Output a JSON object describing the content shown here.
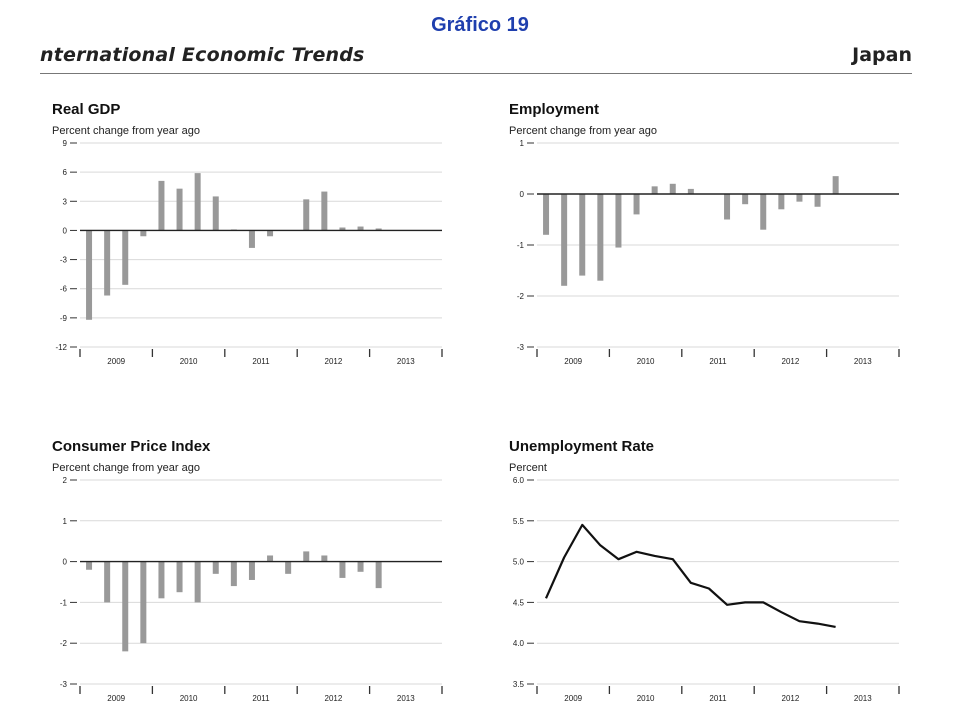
{
  "page": {
    "title": "Gráfico 19",
    "banner_left": "nternational Economic Trends",
    "banner_right": "Japan",
    "colors": {
      "title": "#1f3fae",
      "bar": "#999999",
      "line": "#111111",
      "grid": "#d9d9d9"
    }
  },
  "chart_data": [
    {
      "type": "bar",
      "title": "Real GDP",
      "subtitle": "Percent change from year ago",
      "ylim": [
        -12,
        9
      ],
      "yticks": [
        9,
        6,
        3,
        0,
        -3,
        -6,
        -9,
        -12
      ],
      "grid": true,
      "xlim": [
        2009.0,
        2014.0
      ],
      "year_labels": [
        "2009",
        "2010",
        "2011",
        "2012",
        "2013"
      ],
      "x": [
        "2009Q1",
        "2009Q2",
        "2009Q3",
        "2009Q4",
        "2010Q1",
        "2010Q2",
        "2010Q3",
        "2010Q4",
        "2011Q1",
        "2011Q2",
        "2011Q3",
        "2011Q4",
        "2012Q1",
        "2012Q2",
        "2012Q3",
        "2012Q4",
        "2013Q1",
        "2013Q2",
        "2013Q3",
        "2013Q4"
      ],
      "values": [
        -9.2,
        -6.7,
        -5.6,
        -0.6,
        5.1,
        4.3,
        5.9,
        3.5,
        0.1,
        -1.8,
        -0.6,
        null,
        3.2,
        4.0,
        0.3,
        0.4,
        0.2,
        null,
        null,
        null
      ]
    },
    {
      "type": "bar",
      "title": "Employment",
      "subtitle": "Percent change from year ago",
      "ylim": [
        -3,
        1
      ],
      "yticks": [
        1,
        0,
        -1,
        -2,
        -3
      ],
      "grid": true,
      "xlim": [
        2009.0,
        2014.0
      ],
      "year_labels": [
        "2009",
        "2010",
        "2011",
        "2012",
        "2013"
      ],
      "x": [
        "2009Q1",
        "2009Q2",
        "2009Q3",
        "2009Q4",
        "2010Q1",
        "2010Q2",
        "2010Q3",
        "2010Q4",
        "2011Q1",
        "2011Q2",
        "2011Q3",
        "2011Q4",
        "2012Q1",
        "2012Q2",
        "2012Q3",
        "2012Q4",
        "2013Q1",
        "2013Q2",
        "2013Q3",
        "2013Q4"
      ],
      "values": [
        -0.8,
        -1.8,
        -1.6,
        -1.7,
        -1.05,
        -0.4,
        0.15,
        0.2,
        0.1,
        null,
        -0.5,
        -0.2,
        -0.7,
        -0.3,
        -0.15,
        -0.25,
        0.35,
        null,
        null,
        null
      ]
    },
    {
      "type": "bar",
      "title": "Consumer Price Index",
      "subtitle": "Percent change from year ago",
      "ylim": [
        -3,
        2
      ],
      "yticks": [
        2,
        1,
        0,
        -1,
        -2,
        -3
      ],
      "grid": true,
      "xlim": [
        2009.0,
        2014.0
      ],
      "year_labels": [
        "2009",
        "2010",
        "2011",
        "2012",
        "2013"
      ],
      "x": [
        "2009Q1",
        "2009Q2",
        "2009Q3",
        "2009Q4",
        "2010Q1",
        "2010Q2",
        "2010Q3",
        "2010Q4",
        "2011Q1",
        "2011Q2",
        "2011Q3",
        "2011Q4",
        "2012Q1",
        "2012Q2",
        "2012Q3",
        "2012Q4",
        "2013Q1",
        "2013Q2",
        "2013Q3",
        "2013Q4"
      ],
      "values": [
        -0.2,
        -1.0,
        -2.2,
        -2.0,
        -0.9,
        -0.75,
        -1.0,
        -0.3,
        -0.6,
        -0.45,
        0.15,
        -0.3,
        0.25,
        0.15,
        -0.4,
        -0.25,
        -0.65,
        null,
        null,
        null
      ]
    },
    {
      "type": "line",
      "title": "Unemployment Rate",
      "subtitle": "Percent",
      "ylim": [
        3.5,
        6.0
      ],
      "yticks": [
        "6.0",
        "5.5",
        "5.0",
        "4.5",
        "4.0",
        "3.5"
      ],
      "grid": true,
      "xlim": [
        2009.0,
        2014.0
      ],
      "year_labels": [
        "2009",
        "2010",
        "2011",
        "2012",
        "2013"
      ],
      "x": [
        "2009Q1",
        "2009Q2",
        "2009Q3",
        "2009Q4",
        "2010Q1",
        "2010Q2",
        "2010Q3",
        "2010Q4",
        "2011Q1",
        "2011Q2",
        "2011Q3",
        "2011Q4",
        "2012Q1",
        "2012Q2",
        "2012Q3",
        "2012Q4",
        "2013Q1"
      ],
      "values": [
        4.55,
        5.05,
        5.45,
        5.2,
        5.03,
        5.12,
        5.07,
        5.03,
        4.74,
        4.67,
        4.47,
        4.5,
        4.5,
        4.38,
        4.27,
        4.24,
        4.2
      ]
    }
  ]
}
